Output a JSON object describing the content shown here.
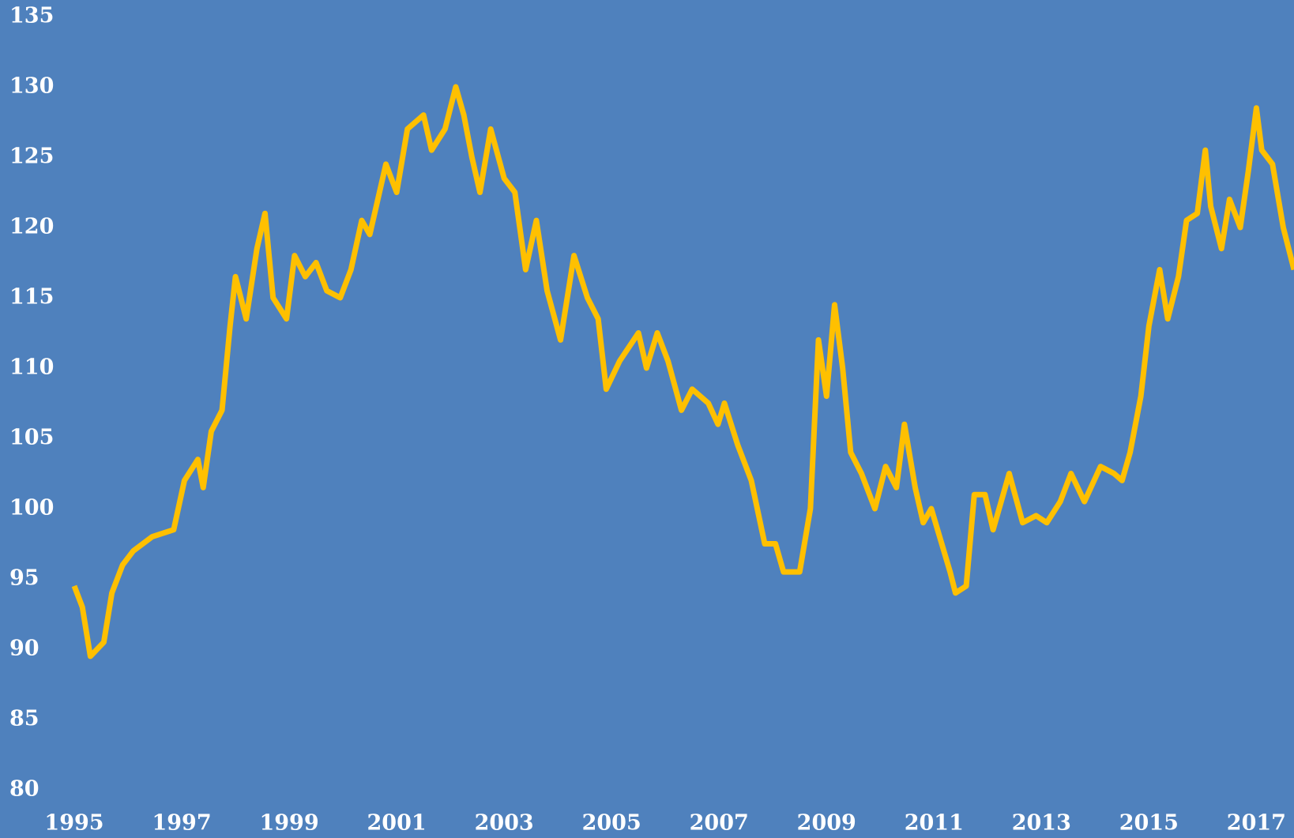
{
  "chart_data": {
    "type": "line",
    "xlim": [
      1995,
      2017.7
    ],
    "ylim": [
      80,
      135
    ],
    "xticks": [
      1995,
      1997,
      1999,
      2001,
      2003,
      2005,
      2007,
      2009,
      2011,
      2013,
      2015,
      2017
    ],
    "yticks": [
      80,
      85,
      90,
      95,
      100,
      105,
      110,
      115,
      120,
      125,
      130,
      135
    ],
    "series": [
      {
        "color": "#ffc000",
        "x": [
          1995.0,
          1995.15,
          1995.3,
          1995.55,
          1995.7,
          1995.9,
          1996.1,
          1996.45,
          1996.85,
          1997.05,
          1997.3,
          1997.4,
          1997.55,
          1997.75,
          1997.9,
          1998.0,
          1998.2,
          1998.4,
          1998.55,
          1998.7,
          1998.95,
          1999.1,
          1999.3,
          1999.5,
          1999.7,
          1999.95,
          2000.15,
          2000.35,
          2000.5,
          2000.8,
          2001.0,
          2001.2,
          2001.5,
          2001.65,
          2001.9,
          2002.1,
          2002.25,
          2002.4,
          2002.55,
          2002.75,
          2003.0,
          2003.2,
          2003.4,
          2003.6,
          2003.8,
          2004.05,
          2004.3,
          2004.55,
          2004.75,
          2004.9,
          2005.15,
          2005.5,
          2005.65,
          2005.85,
          2006.05,
          2006.3,
          2006.5,
          2006.8,
          2006.98,
          2007.1,
          2007.35,
          2007.6,
          2007.85,
          2008.05,
          2008.2,
          2008.5,
          2008.7,
          2008.85,
          2009.0,
          2009.15,
          2009.3,
          2009.45,
          2009.65,
          2009.9,
          2010.1,
          2010.3,
          2010.45,
          2010.65,
          2010.8,
          2010.95,
          2011.3,
          2011.4,
          2011.6,
          2011.75,
          2011.95,
          2012.1,
          2012.4,
          2012.65,
          2012.9,
          2013.1,
          2013.35,
          2013.55,
          2013.8,
          2014.1,
          2014.35,
          2014.5,
          2014.65,
          2014.85,
          2015.0,
          2015.2,
          2015.35,
          2015.55,
          2015.7,
          2015.9,
          2016.05,
          2016.15,
          2016.35,
          2016.5,
          2016.7,
          2016.85,
          2017.0,
          2017.1,
          2017.3,
          2017.5,
          2017.7
        ],
        "values": [
          94.5,
          93,
          89.5,
          90.5,
          94,
          96,
          97,
          98,
          98.5,
          102,
          103.5,
          101.5,
          105.5,
          107,
          113,
          116.5,
          113.5,
          118.5,
          121,
          115,
          113.5,
          118,
          116.5,
          117.5,
          115.5,
          115,
          117,
          120.5,
          119.5,
          124.5,
          122.5,
          127,
          128,
          125.5,
          127,
          130,
          128,
          125,
          122.5,
          127,
          123.5,
          122.5,
          117,
          120.5,
          115.5,
          112,
          118,
          115,
          113.5,
          108.5,
          110.5,
          112.5,
          110,
          112.5,
          110.5,
          107,
          108.5,
          107.5,
          106,
          107.5,
          104.5,
          102,
          97.5,
          97.5,
          95.5,
          95.5,
          100,
          112,
          108,
          114.5,
          110,
          104,
          102.5,
          100,
          103,
          101.5,
          106,
          101.5,
          99,
          100,
          95.5,
          94,
          94.5,
          101,
          101,
          98.5,
          102.5,
          99,
          99.5,
          99,
          100.5,
          102.5,
          100.5,
          103,
          102.5,
          102,
          104,
          108,
          113,
          117,
          113.5,
          116.5,
          120.5,
          121,
          125.5,
          121.5,
          118.5,
          122,
          120,
          124,
          128.5,
          125.5,
          124.5,
          120,
          117
        ]
      }
    ]
  }
}
